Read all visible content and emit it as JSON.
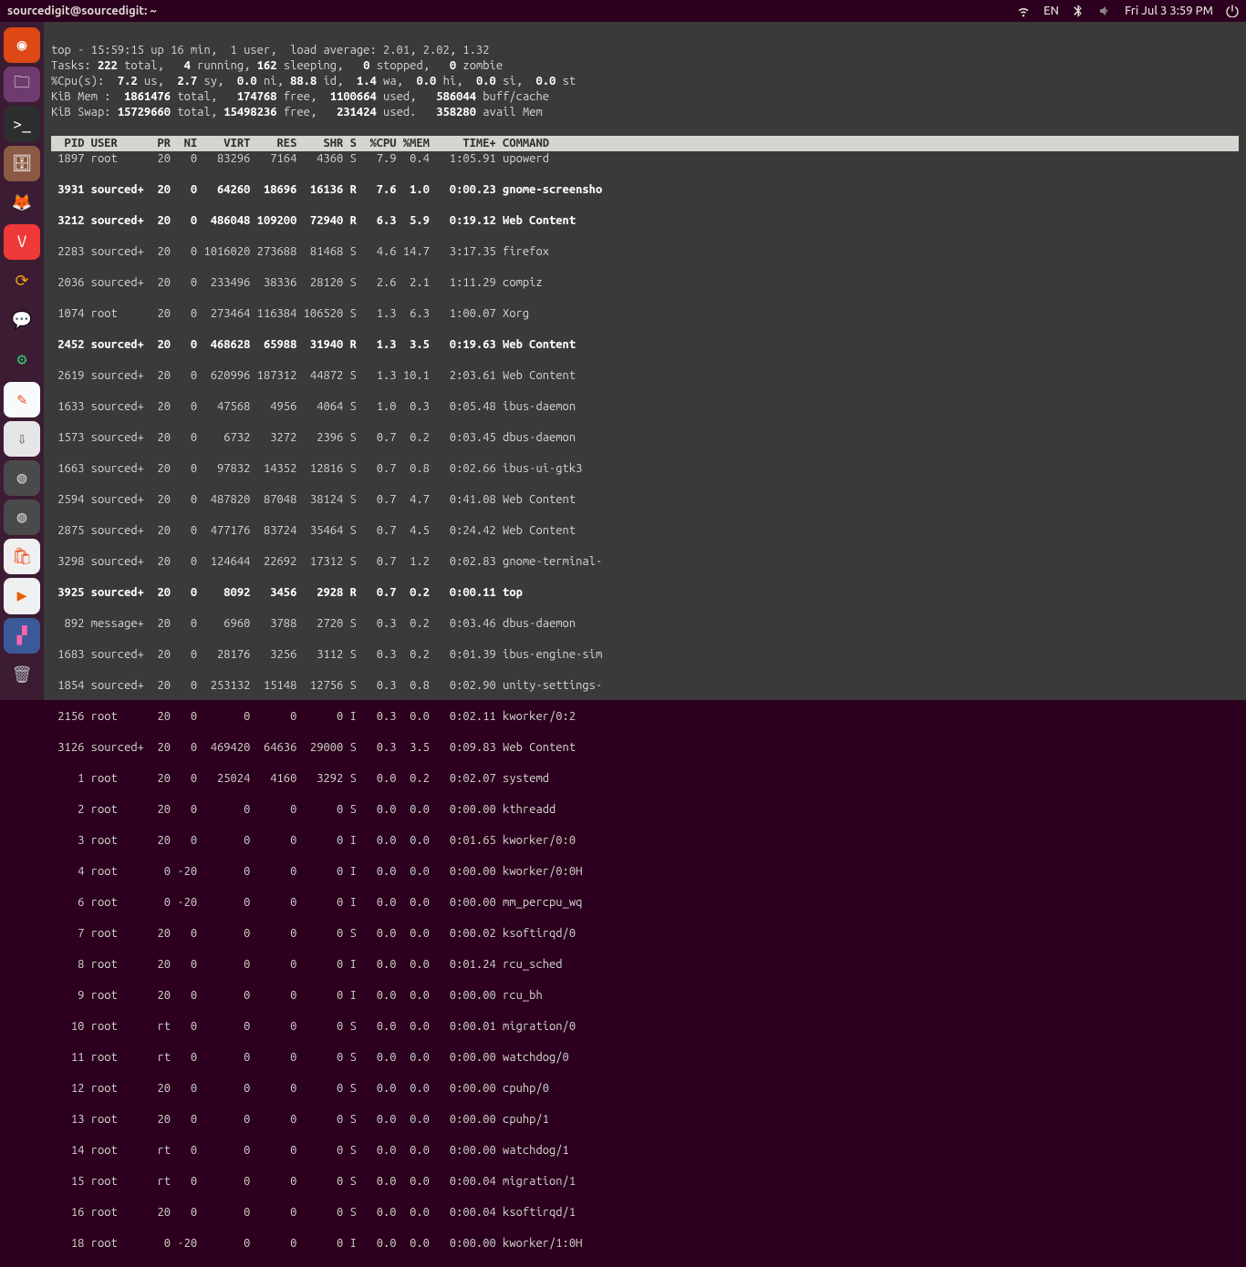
{
  "topbar": {
    "title": "sourcedigit@sourcedigit: ~",
    "lang": "EN",
    "clock": "Fri Jul 3  3:59 PM"
  },
  "launcher": {
    "tiles": [
      {
        "name": "ubuntu-logo",
        "bg": "#dd4814",
        "glyph": "◉",
        "fg": "#ffffff"
      },
      {
        "name": "files",
        "bg": "#6e3b6e",
        "glyph": "🗀",
        "fg": "#ffffff"
      },
      {
        "name": "terminal",
        "bg": "#2e2e2e",
        "glyph": ">_",
        "fg": "#ffffff"
      },
      {
        "name": "nautilus",
        "bg": "#8a5a44",
        "glyph": "🗄",
        "fg": "#ffffff"
      },
      {
        "name": "firefox",
        "bg": "#3b1c33",
        "glyph": "🦊",
        "fg": "#ff7139"
      },
      {
        "name": "vivaldi",
        "bg": "#ef3939",
        "glyph": "V",
        "fg": "#ffffff"
      },
      {
        "name": "sync",
        "bg": "#3b1c33",
        "glyph": "⟳",
        "fg": "#f39c12"
      },
      {
        "name": "chat",
        "bg": "#3b1c33",
        "glyph": "💬",
        "fg": "#1a73e8"
      },
      {
        "name": "settings",
        "bg": "#3b1c33",
        "glyph": "⚙",
        "fg": "#2ecc71"
      },
      {
        "name": "editor",
        "bg": "#fafafa",
        "glyph": "✎",
        "fg": "#e95420"
      },
      {
        "name": "usb",
        "bg": "#e6e6e6",
        "glyph": "⇩",
        "fg": "#555555"
      },
      {
        "name": "disk1",
        "bg": "#4a4a4a",
        "glyph": "◍",
        "fg": "#cccccc"
      },
      {
        "name": "disk2",
        "bg": "#4a4a4a",
        "glyph": "◍",
        "fg": "#cccccc"
      },
      {
        "name": "software",
        "bg": "#f0f0f0",
        "glyph": "🛍",
        "fg": "#e95420"
      },
      {
        "name": "vlc",
        "bg": "#f0f0f0",
        "glyph": "▶",
        "fg": "#e85e00"
      },
      {
        "name": "wallpaper",
        "bg": "#3b5998",
        "glyph": "▞",
        "fg": "#ff66aa"
      }
    ],
    "trash": {
      "name": "trash",
      "bg": "transparent",
      "glyph": "🗑",
      "fg": "#bbbbbb"
    }
  },
  "top": {
    "summary": {
      "line1_a": "top - 15:59:15 up 16 min,  1 user,  load average: 2.01, 2.02, 1.32",
      "tasks_total": "222",
      "tasks_run": "4",
      "tasks_sleep": "162",
      "tasks_stop": "0",
      "tasks_zomb": "0",
      "cpu_us": "7.2",
      "cpu_sy": "2.7",
      "cpu_ni": "0.0",
      "cpu_id": "88.8",
      "cpu_wa": "1.4",
      "cpu_hi": "0.0",
      "cpu_si": "0.0",
      "cpu_st": "0.0",
      "mem_total": "1861476",
      "mem_free": "174768",
      "mem_used": "1100664",
      "mem_buff": "586044",
      "swap_total": "15729660",
      "swap_free": "15498236",
      "swap_used": "231424",
      "swap_avail": "358280"
    },
    "header": "  PID USER      PR  NI    VIRT    RES    SHR S  %CPU %MEM     TIME+ COMMAND",
    "rows": [
      {
        "b": 0,
        "c": [
          " 1897",
          "root    ",
          "20",
          "  0",
          "  83296",
          "  7164",
          "  4360",
          "S",
          "  7.9",
          " 0.4",
          "  1:05.91",
          "upowerd"
        ]
      },
      {
        "b": 1,
        "c": [
          " 3931",
          "sourced+",
          "20",
          "  0",
          "  64260",
          " 18696",
          " 16136",
          "R",
          "  7.6",
          " 1.0",
          "  0:00.23",
          "gnome-screensho"
        ]
      },
      {
        "b": 1,
        "c": [
          " 3212",
          "sourced+",
          "20",
          "  0",
          " 486048",
          "109200",
          " 72940",
          "R",
          "  6.3",
          " 5.9",
          "  0:19.12",
          "Web Content"
        ]
      },
      {
        "b": 0,
        "c": [
          " 2283",
          "sourced+",
          "20",
          "  0",
          "1016020",
          "273688",
          " 81468",
          "S",
          "  4.6",
          "14.7",
          "  3:17.35",
          "firefox"
        ]
      },
      {
        "b": 0,
        "c": [
          " 2036",
          "sourced+",
          "20",
          "  0",
          " 233496",
          " 38336",
          " 28120",
          "S",
          "  2.6",
          " 2.1",
          "  1:11.29",
          "compiz"
        ]
      },
      {
        "b": 0,
        "c": [
          " 1074",
          "root    ",
          "20",
          "  0",
          " 273464",
          "116384",
          "106520",
          "S",
          "  1.3",
          " 6.3",
          "  1:00.07",
          "Xorg"
        ]
      },
      {
        "b": 1,
        "c": [
          " 2452",
          "sourced+",
          "20",
          "  0",
          " 468628",
          " 65988",
          " 31940",
          "R",
          "  1.3",
          " 3.5",
          "  0:19.63",
          "Web Content"
        ]
      },
      {
        "b": 0,
        "c": [
          " 2619",
          "sourced+",
          "20",
          "  0",
          " 620996",
          "187312",
          " 44872",
          "S",
          "  1.3",
          "10.1",
          "  2:03.61",
          "Web Content"
        ]
      },
      {
        "b": 0,
        "c": [
          " 1633",
          "sourced+",
          "20",
          "  0",
          "  47568",
          "  4956",
          "  4064",
          "S",
          "  1.0",
          " 0.3",
          "  0:05.48",
          "ibus-daemon"
        ]
      },
      {
        "b": 0,
        "c": [
          " 1573",
          "sourced+",
          "20",
          "  0",
          "   6732",
          "  3272",
          "  2396",
          "S",
          "  0.7",
          " 0.2",
          "  0:03.45",
          "dbus-daemon"
        ]
      },
      {
        "b": 0,
        "c": [
          " 1663",
          "sourced+",
          "20",
          "  0",
          "  97832",
          " 14352",
          " 12816",
          "S",
          "  0.7",
          " 0.8",
          "  0:02.66",
          "ibus-ui-gtk3"
        ]
      },
      {
        "b": 0,
        "c": [
          " 2594",
          "sourced+",
          "20",
          "  0",
          " 487820",
          " 87048",
          " 38124",
          "S",
          "  0.7",
          " 4.7",
          "  0:41.08",
          "Web Content"
        ]
      },
      {
        "b": 0,
        "c": [
          " 2875",
          "sourced+",
          "20",
          "  0",
          " 477176",
          " 83724",
          " 35464",
          "S",
          "  0.7",
          " 4.5",
          "  0:24.42",
          "Web Content"
        ]
      },
      {
        "b": 0,
        "c": [
          " 3298",
          "sourced+",
          "20",
          "  0",
          " 124644",
          " 22692",
          " 17312",
          "S",
          "  0.7",
          " 1.2",
          "  0:02.83",
          "gnome-terminal-"
        ]
      },
      {
        "b": 1,
        "c": [
          " 3925",
          "sourced+",
          "20",
          "  0",
          "   8092",
          "  3456",
          "  2928",
          "R",
          "  0.7",
          " 0.2",
          "  0:00.11",
          "top"
        ]
      },
      {
        "b": 0,
        "c": [
          "  892",
          "message+",
          "20",
          "  0",
          "   6960",
          "  3788",
          "  2720",
          "S",
          "  0.3",
          " 0.2",
          "  0:03.46",
          "dbus-daemon"
        ]
      },
      {
        "b": 0,
        "c": [
          " 1683",
          "sourced+",
          "20",
          "  0",
          "  28176",
          "  3256",
          "  3112",
          "S",
          "  0.3",
          " 0.2",
          "  0:01.39",
          "ibus-engine-sim"
        ]
      },
      {
        "b": 0,
        "c": [
          " 1854",
          "sourced+",
          "20",
          "  0",
          " 253132",
          " 15148",
          " 12756",
          "S",
          "  0.3",
          " 0.8",
          "  0:02.90",
          "unity-settings-"
        ]
      },
      {
        "b": 0,
        "c": [
          " 2156",
          "root    ",
          "20",
          "  0",
          "      0",
          "     0",
          "     0",
          "I",
          "  0.3",
          " 0.0",
          "  0:02.11",
          "kworker/0:2"
        ]
      },
      {
        "b": 0,
        "c": [
          " 3126",
          "sourced+",
          "20",
          "  0",
          " 469420",
          " 64636",
          " 29000",
          "S",
          "  0.3",
          " 3.5",
          "  0:09.83",
          "Web Content"
        ]
      },
      {
        "b": 0,
        "c": [
          "    1",
          "root    ",
          "20",
          "  0",
          "  25024",
          "  4160",
          "  3292",
          "S",
          "  0.0",
          " 0.2",
          "  0:02.07",
          "systemd"
        ]
      },
      {
        "b": 0,
        "c": [
          "    2",
          "root    ",
          "20",
          "  0",
          "      0",
          "     0",
          "     0",
          "S",
          "  0.0",
          " 0.0",
          "  0:00.00",
          "kthreadd"
        ]
      },
      {
        "b": 0,
        "c": [
          "    3",
          "root    ",
          "20",
          "  0",
          "      0",
          "     0",
          "     0",
          "I",
          "  0.0",
          " 0.0",
          "  0:01.65",
          "kworker/0:0"
        ]
      },
      {
        "b": 0,
        "c": [
          "    4",
          "root    ",
          " 0",
          "-20",
          "      0",
          "     0",
          "     0",
          "I",
          "  0.0",
          " 0.0",
          "  0:00.00",
          "kworker/0:0H"
        ]
      },
      {
        "b": 0,
        "c": [
          "    6",
          "root    ",
          " 0",
          "-20",
          "      0",
          "     0",
          "     0",
          "I",
          "  0.0",
          " 0.0",
          "  0:00.00",
          "mm_percpu_wq"
        ]
      },
      {
        "b": 0,
        "c": [
          "    7",
          "root    ",
          "20",
          "  0",
          "      0",
          "     0",
          "     0",
          "S",
          "  0.0",
          " 0.0",
          "  0:00.02",
          "ksoftirqd/0"
        ]
      },
      {
        "b": 0,
        "c": [
          "    8",
          "root    ",
          "20",
          "  0",
          "      0",
          "     0",
          "     0",
          "I",
          "  0.0",
          " 0.0",
          "  0:01.24",
          "rcu_sched"
        ]
      },
      {
        "b": 0,
        "c": [
          "    9",
          "root    ",
          "20",
          "  0",
          "      0",
          "     0",
          "     0",
          "I",
          "  0.0",
          " 0.0",
          "  0:00.00",
          "rcu_bh"
        ]
      },
      {
        "b": 0,
        "c": [
          "   10",
          "root    ",
          "rt",
          "  0",
          "      0",
          "     0",
          "     0",
          "S",
          "  0.0",
          " 0.0",
          "  0:00.01",
          "migration/0"
        ]
      },
      {
        "b": 0,
        "c": [
          "   11",
          "root    ",
          "rt",
          "  0",
          "      0",
          "     0",
          "     0",
          "S",
          "  0.0",
          " 0.0",
          "  0:00.00",
          "watchdog/0"
        ]
      },
      {
        "b": 0,
        "c": [
          "   12",
          "root    ",
          "20",
          "  0",
          "      0",
          "     0",
          "     0",
          "S",
          "  0.0",
          " 0.0",
          "  0:00.00",
          "cpuhp/0"
        ]
      },
      {
        "b": 0,
        "c": [
          "   13",
          "root    ",
          "20",
          "  0",
          "      0",
          "     0",
          "     0",
          "S",
          "  0.0",
          " 0.0",
          "  0:00.00",
          "cpuhp/1"
        ]
      },
      {
        "b": 0,
        "c": [
          "   14",
          "root    ",
          "rt",
          "  0",
          "      0",
          "     0",
          "     0",
          "S",
          "  0.0",
          " 0.0",
          "  0:00.00",
          "watchdog/1"
        ]
      },
      {
        "b": 0,
        "c": [
          "   15",
          "root    ",
          "rt",
          "  0",
          "      0",
          "     0",
          "     0",
          "S",
          "  0.0",
          " 0.0",
          "  0:00.04",
          "migration/1"
        ]
      },
      {
        "b": 0,
        "c": [
          "   16",
          "root    ",
          "20",
          "  0",
          "      0",
          "     0",
          "     0",
          "S",
          "  0.0",
          " 0.0",
          "  0:00.04",
          "ksoftirqd/1"
        ]
      },
      {
        "b": 0,
        "c": [
          "   18",
          "root    ",
          " 0",
          "-20",
          "      0",
          "     0",
          "     0",
          "I",
          "  0.0",
          " 0.0",
          "  0:00.00",
          "kworker/1:0H"
        ]
      }
    ]
  }
}
